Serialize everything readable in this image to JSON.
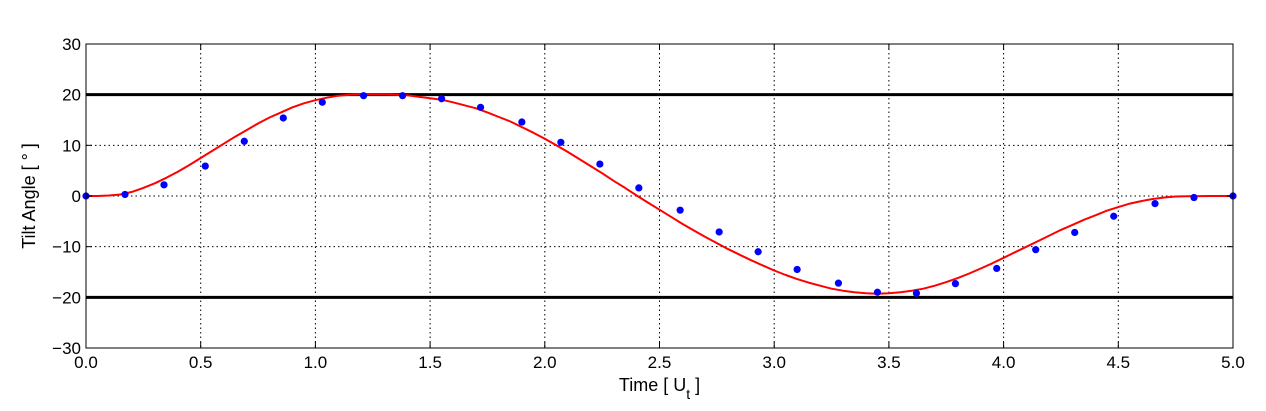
{
  "chart_data": {
    "type": "line",
    "title": "",
    "xlabel": "Time [ U",
    "xlabel_subscript": "t",
    "xlabel_suffix": " ]",
    "ylabel": "Tilt Angle [ ° ]",
    "xlim": [
      0,
      5
    ],
    "ylim": [
      -30,
      30
    ],
    "x_ticks": [
      0,
      0.5,
      1,
      1.5,
      2,
      2.5,
      3,
      3.5,
      4,
      4.5,
      5
    ],
    "x_tick_labels": [
      "0.0",
      "0.5",
      "1.0",
      "1.5",
      "2.0",
      "2.5",
      "3.0",
      "3.5",
      "4.0",
      "4.5",
      "5.0"
    ],
    "y_ticks": [
      -30,
      -20,
      -10,
      0,
      10,
      20,
      30
    ],
    "y_tick_labels": [
      "−30",
      "−20",
      "−10",
      "0",
      "10",
      "20",
      "30"
    ],
    "grid": true,
    "grid_style": "dotted",
    "reference_lines": [
      {
        "y": 20,
        "color": "#000000"
      },
      {
        "y": -20,
        "color": "#000000"
      }
    ],
    "series": [
      {
        "style": "line",
        "color": "#ff0000",
        "x": [
          0,
          0.05,
          0.1,
          0.15,
          0.2,
          0.25,
          0.3,
          0.35,
          0.4,
          0.45,
          0.5,
          0.55,
          0.6,
          0.65,
          0.7,
          0.75,
          0.8,
          0.85,
          0.9,
          0.95,
          1.0,
          1.05,
          1.1,
          1.15,
          1.2,
          1.25,
          1.3,
          1.35,
          1.4,
          1.45,
          1.5,
          1.55,
          1.6,
          1.65,
          1.7,
          1.75,
          1.8,
          1.85,
          1.9,
          1.95,
          2.0,
          2.05,
          2.1,
          2.15,
          2.2,
          2.25,
          2.3,
          2.35,
          2.4,
          2.45,
          2.5,
          2.55,
          2.6,
          2.65,
          2.7,
          2.75,
          2.8,
          2.85,
          2.9,
          2.95,
          3.0,
          3.05,
          3.1,
          3.15,
          3.2,
          3.25,
          3.3,
          3.35,
          3.4,
          3.45,
          3.5,
          3.55,
          3.6,
          3.65,
          3.7,
          3.75,
          3.8,
          3.85,
          3.9,
          3.95,
          4.0,
          4.05,
          4.1,
          4.15,
          4.2,
          4.25,
          4.3,
          4.35,
          4.4,
          4.45,
          4.5,
          4.55,
          4.6,
          4.65,
          4.7,
          4.75,
          4.8,
          4.85,
          4.9,
          4.95,
          5.0
        ],
        "y": [
          0,
          0.0,
          0.1,
          0.3,
          0.8,
          1.6,
          2.5,
          3.6,
          4.8,
          6.1,
          7.5,
          8.9,
          10.3,
          11.7,
          13.0,
          14.3,
          15.5,
          16.5,
          17.5,
          18.3,
          18.9,
          19.4,
          19.8,
          20.0,
          20.1,
          20.1,
          20.1,
          20.0,
          19.9,
          19.6,
          19.3,
          19.0,
          18.5,
          17.9,
          17.3,
          16.5,
          15.6,
          14.7,
          13.6,
          12.5,
          11.3,
          10.0,
          8.7,
          7.3,
          5.9,
          4.5,
          3.0,
          1.6,
          0.1,
          -1.3,
          -2.7,
          -4.1,
          -5.5,
          -6.8,
          -8.1,
          -9.3,
          -10.5,
          -11.6,
          -12.7,
          -13.7,
          -14.7,
          -15.6,
          -16.4,
          -17.1,
          -17.7,
          -18.3,
          -18.7,
          -19.0,
          -19.2,
          -19.3,
          -19.2,
          -19.0,
          -18.7,
          -18.3,
          -17.7,
          -17.0,
          -16.2,
          -15.3,
          -14.3,
          -13.3,
          -12.2,
          -11.1,
          -10.0,
          -8.9,
          -7.8,
          -6.7,
          -5.7,
          -4.7,
          -3.8,
          -2.9,
          -2.2,
          -1.5,
          -1.0,
          -0.6,
          -0.3,
          -0.1,
          -0.05,
          -0.02,
          0.0,
          0.0,
          0.0
        ]
      },
      {
        "style": "markers",
        "color": "#0000ff",
        "x": [
          0.0,
          0.17,
          0.34,
          0.52,
          0.69,
          0.86,
          1.03,
          1.21,
          1.38,
          1.55,
          1.72,
          1.9,
          2.07,
          2.24,
          2.41,
          2.59,
          2.76,
          2.93,
          3.1,
          3.28,
          3.45,
          3.62,
          3.79,
          3.97,
          4.14,
          4.31,
          4.48,
          4.66,
          4.83,
          5.0
        ],
        "y": [
          0.0,
          0.3,
          2.2,
          5.9,
          10.8,
          15.4,
          18.5,
          19.8,
          19.8,
          19.2,
          17.5,
          14.6,
          10.6,
          6.3,
          1.6,
          -2.8,
          -7.1,
          -11.0,
          -14.5,
          -17.2,
          -19.0,
          -19.2,
          -17.3,
          -14.3,
          -10.6,
          -7.2,
          -4.0,
          -1.5,
          -0.3,
          0.0
        ]
      }
    ]
  }
}
